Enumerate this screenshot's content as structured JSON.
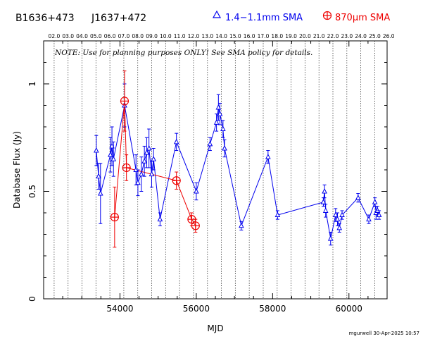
{
  "header": {
    "source_name": "B1636+473",
    "alt_name": "J1637+472",
    "legend": [
      {
        "symbol": "triangle",
        "label": "1.4−1.1mm SMA",
        "color": "#0000ee"
      },
      {
        "symbol": "circle-plus",
        "label": "870μm SMA",
        "color": "#ee0000"
      }
    ]
  },
  "note": "NOTE: Use for planning purposes ONLY! See SMA policy for details.",
  "footer": "mgurwell 30-Apr-2025 10:57",
  "chart_data": {
    "type": "scatter",
    "xlabel": "MJD",
    "ylabel": "Database Flux (Jy)",
    "xlim": [
      52000,
      61000
    ],
    "ylim": [
      0,
      1.2
    ],
    "x_ticks": [
      54000,
      56000,
      58000,
      60000
    ],
    "x_tick_labels": [
      "54000",
      "56000",
      "58000",
      "60000"
    ],
    "y_ticks": [
      0,
      0.5,
      1
    ],
    "y_tick_labels": [
      "0",
      "0.5",
      "1"
    ],
    "top_axis_labels": [
      "02.0",
      "03.0",
      "04.0",
      "05.0",
      "06.0",
      "07.0",
      "08.0",
      "09.0",
      "10.0",
      "11.0",
      "12.0",
      "13.0",
      "14.0",
      "15.0",
      "16.0",
      "17.0",
      "18.0",
      "19.0",
      "20.0",
      "21.0",
      "22.0",
      "23.0",
      "24.0",
      "25.0",
      "26.0"
    ],
    "top_axis_mjd": [
      52275,
      52640,
      53005,
      53371,
      53736,
      54101,
      54466,
      54832,
      55197,
      55562,
      55927,
      56293,
      56658,
      57023,
      57388,
      57754,
      58119,
      58484,
      58849,
      59215,
      59580,
      59945,
      60310,
      60676,
      61041
    ],
    "grid": "vertical dotted lines at year boundaries",
    "series": [
      {
        "name": "1.4−1.1mm SMA",
        "color": "#0000ee",
        "marker": "triangle",
        "points": [
          {
            "x": 53380,
            "y": 0.69,
            "err": 0.07
          },
          {
            "x": 53440,
            "y": 0.57,
            "err": 0.06
          },
          {
            "x": 53490,
            "y": 0.49,
            "err": 0.14
          },
          {
            "x": 53750,
            "y": 0.67,
            "err": 0.08
          },
          {
            "x": 53790,
            "y": 0.71,
            "err": 0.09
          },
          {
            "x": 53830,
            "y": 0.65,
            "err": 0.08
          },
          {
            "x": 54120,
            "y": 0.9,
            "err": 0.1
          },
          {
            "x": 54420,
            "y": 0.6,
            "err": 0.07
          },
          {
            "x": 54470,
            "y": 0.54,
            "err": 0.06
          },
          {
            "x": 54560,
            "y": 0.58,
            "err": 0.08
          },
          {
            "x": 54640,
            "y": 0.64,
            "err": 0.07
          },
          {
            "x": 54700,
            "y": 0.68,
            "err": 0.07
          },
          {
            "x": 54760,
            "y": 0.7,
            "err": 0.09
          },
          {
            "x": 54830,
            "y": 0.58,
            "err": 0.06
          },
          {
            "x": 54880,
            "y": 0.65,
            "err": 0.05
          },
          {
            "x": 55050,
            "y": 0.37,
            "err": 0.03
          },
          {
            "x": 55480,
            "y": 0.73,
            "err": 0.04
          },
          {
            "x": 56000,
            "y": 0.5,
            "err": 0.04
          },
          {
            "x": 56360,
            "y": 0.72,
            "err": 0.03
          },
          {
            "x": 56530,
            "y": 0.82,
            "err": 0.04
          },
          {
            "x": 56580,
            "y": 0.89,
            "err": 0.06
          },
          {
            "x": 56620,
            "y": 0.86,
            "err": 0.05
          },
          {
            "x": 56700,
            "y": 0.79,
            "err": 0.04
          },
          {
            "x": 56740,
            "y": 0.7,
            "err": 0.04
          },
          {
            "x": 57180,
            "y": 0.34,
            "err": 0.02
          },
          {
            "x": 57880,
            "y": 0.66,
            "err": 0.03
          },
          {
            "x": 58130,
            "y": 0.39,
            "err": 0.02
          },
          {
            "x": 59330,
            "y": 0.45,
            "err": 0.02
          },
          {
            "x": 59360,
            "y": 0.5,
            "err": 0.03
          },
          {
            "x": 59390,
            "y": 0.41,
            "err": 0.03
          },
          {
            "x": 59520,
            "y": 0.28,
            "err": 0.03
          },
          {
            "x": 59650,
            "y": 0.39,
            "err": 0.03
          },
          {
            "x": 59700,
            "y": 0.37,
            "err": 0.03
          },
          {
            "x": 59750,
            "y": 0.33,
            "err": 0.02
          },
          {
            "x": 59820,
            "y": 0.39,
            "err": 0.02
          },
          {
            "x": 60240,
            "y": 0.47,
            "err": 0.02
          },
          {
            "x": 60520,
            "y": 0.37,
            "err": 0.02
          },
          {
            "x": 60680,
            "y": 0.45,
            "err": 0.02
          },
          {
            "x": 60710,
            "y": 0.4,
            "err": 0.03
          },
          {
            "x": 60750,
            "y": 0.41,
            "err": 0.02
          },
          {
            "x": 60790,
            "y": 0.39,
            "err": 0.02
          }
        ]
      },
      {
        "name": "870μm SMA",
        "color": "#ee0000",
        "marker": "circle-plus",
        "points": [
          {
            "x": 53860,
            "y": 0.38,
            "err": 0.14
          },
          {
            "x": 54120,
            "y": 0.92,
            "err": 0.14
          },
          {
            "x": 54170,
            "y": 0.61,
            "err": 0.06
          },
          {
            "x": 55480,
            "y": 0.55,
            "err": 0.04
          },
          {
            "x": 55880,
            "y": 0.37,
            "err": 0.03
          },
          {
            "x": 55980,
            "y": 0.34,
            "err": 0.03
          }
        ]
      }
    ]
  }
}
